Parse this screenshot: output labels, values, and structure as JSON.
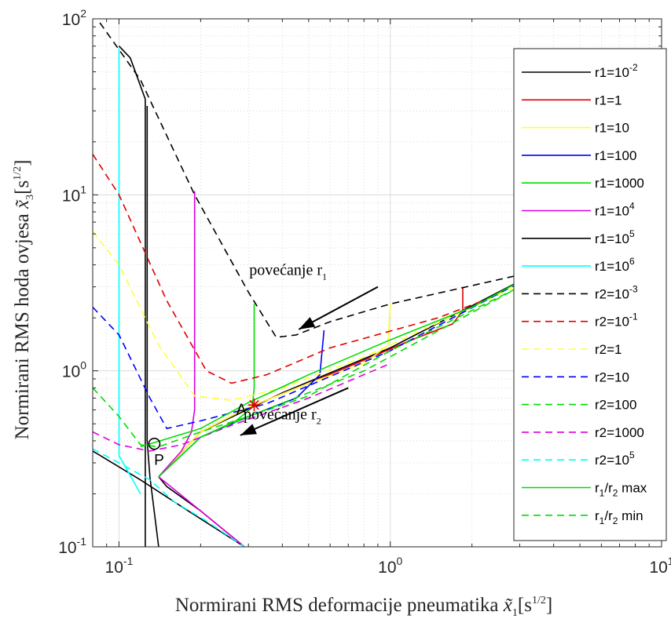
{
  "chart_data": {
    "type": "line",
    "xlabel": "Normirani RMS deformacije pneumatika",
    "xlabel_math": "x̃",
    "xlabel_sub": "1",
    "xlabel_unit": "[s",
    "xlabel_unit_sup": "1/2",
    "xlabel_unit_close": "]",
    "ylabel": "Normirani RMS hoda ovjesa",
    "ylabel_math": "x̃",
    "ylabel_sub": "3",
    "ylabel_unit": "[s",
    "ylabel_unit_sup": "1/2",
    "ylabel_unit_close": "]",
    "x_scale": "log",
    "y_scale": "log",
    "xlim": [
      0.08,
      10
    ],
    "ylim": [
      0.1,
      100
    ],
    "grid": true,
    "x_ticks": [
      {
        "base": "10",
        "exp": "-1"
      },
      {
        "base": "10",
        "exp": "0"
      },
      {
        "base": "10",
        "exp": "1"
      }
    ],
    "y_ticks": [
      {
        "base": "10",
        "exp": "-1"
      },
      {
        "base": "10",
        "exp": "0"
      },
      {
        "base": "10",
        "exp": "1"
      },
      {
        "base": "10",
        "exp": "2"
      }
    ],
    "legend_position": "right",
    "series": [
      {
        "name": "r1=10",
        "sup": "-2",
        "color": "#000000",
        "dash": "solid",
        "points": [
          [
            0.125,
            0.1
          ],
          [
            0.125,
            35
          ],
          [
            0.11,
            60
          ],
          [
            0.1,
            70
          ]
        ]
      },
      {
        "name": "r1=1",
        "color": "#e00000",
        "dash": "solid",
        "points": [
          [
            0.14,
            0.25
          ],
          [
            0.2,
            0.45
          ],
          [
            0.3,
            0.62
          ],
          [
            0.5,
            0.85
          ],
          [
            0.8,
            1.15
          ],
          [
            1.2,
            1.5
          ],
          [
            1.7,
            1.85
          ],
          [
            1.85,
            2.2
          ],
          [
            1.85,
            3.0
          ]
        ]
      },
      {
        "name": "r1=10",
        "color": "#ffff33",
        "dash": "solid",
        "points": [
          [
            0.14,
            0.25
          ],
          [
            0.2,
            0.45
          ],
          [
            0.3,
            0.62
          ],
          [
            0.5,
            0.85
          ],
          [
            0.8,
            1.1
          ],
          [
            0.98,
            1.4
          ],
          [
            1.0,
            2.4
          ]
        ]
      },
      {
        "name": "r1=100",
        "color": "#0000ff",
        "dash": "solid",
        "points": [
          [
            0.14,
            0.25
          ],
          [
            0.2,
            0.42
          ],
          [
            0.3,
            0.55
          ],
          [
            0.45,
            0.7
          ],
          [
            0.55,
            0.95
          ],
          [
            0.57,
            1.7
          ]
        ]
      },
      {
        "name": "r1=1000",
        "color": "#00dd00",
        "dash": "solid",
        "points": [
          [
            0.14,
            0.25
          ],
          [
            0.2,
            0.42
          ],
          [
            0.27,
            0.52
          ],
          [
            0.31,
            0.62
          ],
          [
            0.315,
            0.8
          ],
          [
            0.315,
            2.4
          ]
        ]
      },
      {
        "name": "r1=10",
        "sup": "4",
        "color": "#dd00dd",
        "dash": "solid",
        "points": [
          [
            0.14,
            0.25
          ],
          [
            0.17,
            0.35
          ],
          [
            0.185,
            0.45
          ],
          [
            0.19,
            0.6
          ],
          [
            0.19,
            10.5
          ]
        ]
      },
      {
        "name": "r1=10",
        "sup": "5",
        "color": "#000000",
        "dash": "solid",
        "points": [
          [
            0.14,
            0.1
          ],
          [
            0.13,
            0.25
          ],
          [
            0.127,
            0.4
          ],
          [
            0.127,
            32
          ]
        ]
      },
      {
        "name": "r1=10",
        "sup": "6",
        "color": "#00ffff",
        "dash": "solid",
        "points": [
          [
            0.12,
            0.2
          ],
          [
            0.1,
            0.33
          ],
          [
            0.1,
            68
          ]
        ]
      },
      {
        "name": "r2=10",
        "sup": "-3",
        "color": "#000000",
        "dash": "dashed",
        "points": [
          [
            0.085,
            95
          ],
          [
            0.12,
            45
          ],
          [
            0.19,
            10
          ],
          [
            0.3,
            2.8
          ],
          [
            0.38,
            1.55
          ],
          [
            0.45,
            1.6
          ],
          [
            0.6,
            1.9
          ],
          [
            1.0,
            2.4
          ],
          [
            3.5,
            3.7
          ]
        ]
      },
      {
        "name": "r2=10",
        "sup": "-1",
        "color": "#e00000",
        "dash": "dashed",
        "points": [
          [
            0.08,
            17
          ],
          [
            0.1,
            10
          ],
          [
            0.15,
            2.5
          ],
          [
            0.21,
            1.0
          ],
          [
            0.26,
            0.85
          ],
          [
            0.35,
            0.95
          ],
          [
            0.6,
            1.35
          ],
          [
            1.5,
            2.0
          ],
          [
            2.5,
            2.7
          ]
        ]
      },
      {
        "name": "r2=1",
        "color": "#ffff33",
        "dash": "dashed",
        "points": [
          [
            0.08,
            6.2
          ],
          [
            0.1,
            4.0
          ],
          [
            0.14,
            1.4
          ],
          [
            0.19,
            0.72
          ],
          [
            0.26,
            0.68
          ],
          [
            0.4,
            0.8
          ],
          [
            0.8,
            1.2
          ],
          [
            2.0,
            2.3
          ],
          [
            3.0,
            3.1
          ]
        ]
      },
      {
        "name": "r2=10",
        "color": "#0000ff",
        "dash": "dashed",
        "points": [
          [
            0.08,
            2.3
          ],
          [
            0.1,
            1.6
          ],
          [
            0.13,
            0.7
          ],
          [
            0.15,
            0.47
          ],
          [
            0.2,
            0.52
          ],
          [
            0.35,
            0.65
          ],
          [
            1.0,
            1.3
          ],
          [
            3.5,
            3.6
          ]
        ]
      },
      {
        "name": "r2=100",
        "color": "#00dd00",
        "dash": "dashed",
        "points": [
          [
            0.08,
            0.8
          ],
          [
            0.1,
            0.55
          ],
          [
            0.12,
            0.38
          ],
          [
            0.14,
            0.37
          ],
          [
            0.2,
            0.45
          ],
          [
            0.3,
            0.55
          ],
          [
            0.8,
            1.0
          ],
          [
            3.0,
            3.0
          ]
        ]
      },
      {
        "name": "r2=1000",
        "color": "#dd00dd",
        "dash": "dashed",
        "points": [
          [
            0.08,
            0.45
          ],
          [
            0.1,
            0.38
          ],
          [
            0.13,
            0.35
          ],
          [
            0.17,
            0.38
          ],
          [
            0.25,
            0.48
          ],
          [
            0.5,
            0.7
          ],
          [
            1.0,
            1.1
          ]
        ]
      },
      {
        "name": "r2=10",
        "sup": "5",
        "color": "#00ffff",
        "dash": "dashed",
        "points": [
          [
            0.08,
            0.36
          ],
          [
            0.1,
            0.3
          ],
          [
            0.13,
            0.24
          ],
          [
            0.16,
            0.18
          ],
          [
            0.21,
            0.14
          ],
          [
            0.29,
            0.1
          ]
        ]
      },
      {
        "name": "r",
        "sub1": "1",
        "mid": "/r",
        "sub2": "2",
        "tail": " max",
        "color": "#00dd00",
        "dash": "solid",
        "points": [
          [
            0.12,
            0.37
          ],
          [
            0.2,
            0.47
          ],
          [
            0.3,
            0.66
          ],
          [
            0.5,
            0.95
          ],
          [
            1.0,
            1.5
          ],
          [
            2.0,
            2.3
          ],
          [
            3.5,
            3.65
          ]
        ]
      },
      {
        "name": "r",
        "sub1": "1",
        "mid": "/r",
        "sub2": "2",
        "tail": " min",
        "color": "#00dd00",
        "dash": "dashed",
        "points": [
          [
            0.14,
            0.25
          ],
          [
            0.2,
            0.42
          ],
          [
            0.3,
            0.55
          ],
          [
            0.5,
            0.72
          ],
          [
            1.0,
            1.3
          ],
          [
            3.0,
            3.0
          ]
        ]
      }
    ],
    "extra_lines": [
      {
        "color": "#000000",
        "points": [
          [
            0.08,
            0.35
          ],
          [
            0.12,
            0.24
          ],
          [
            0.18,
            0.16
          ],
          [
            0.29,
            0.1
          ]
        ]
      },
      {
        "color": "#000000",
        "points": [
          [
            0.14,
            0.25
          ],
          [
            0.15,
            0.22
          ],
          [
            0.2,
            0.16
          ],
          [
            0.29,
            0.1
          ]
        ]
      },
      {
        "color": "#000000",
        "points": [
          [
            0.14,
            0.25
          ],
          [
            0.2,
            0.45
          ],
          [
            0.4,
            0.75
          ],
          [
            1.0,
            1.35
          ],
          [
            3.5,
            3.65
          ]
        ]
      },
      {
        "color": "#dd00dd",
        "points": [
          [
            0.14,
            0.25
          ],
          [
            0.2,
            0.16
          ],
          [
            0.29,
            0.1
          ]
        ]
      }
    ],
    "annotations": [
      {
        "id": "r1",
        "text": "povećanje r",
        "sub": "1",
        "x": 0.42,
        "y": 3.5
      },
      {
        "id": "r2",
        "text": "povećanje r",
        "sub": "2",
        "x": 0.4,
        "y": 0.53
      }
    ],
    "arrows": [
      {
        "id": "arrow-r1",
        "from": [
          0.9,
          3.0
        ],
        "to": [
          0.46,
          1.72
        ]
      },
      {
        "id": "arrow-r2",
        "from": [
          0.7,
          0.8
        ],
        "to": [
          0.28,
          0.43
        ]
      }
    ],
    "points": [
      {
        "label": "A",
        "x": 0.315,
        "y": 0.64,
        "marker": "star",
        "color": "#e00000"
      },
      {
        "label": "P",
        "x": 0.135,
        "y": 0.385,
        "marker": "circle",
        "color": "#000000"
      }
    ]
  }
}
